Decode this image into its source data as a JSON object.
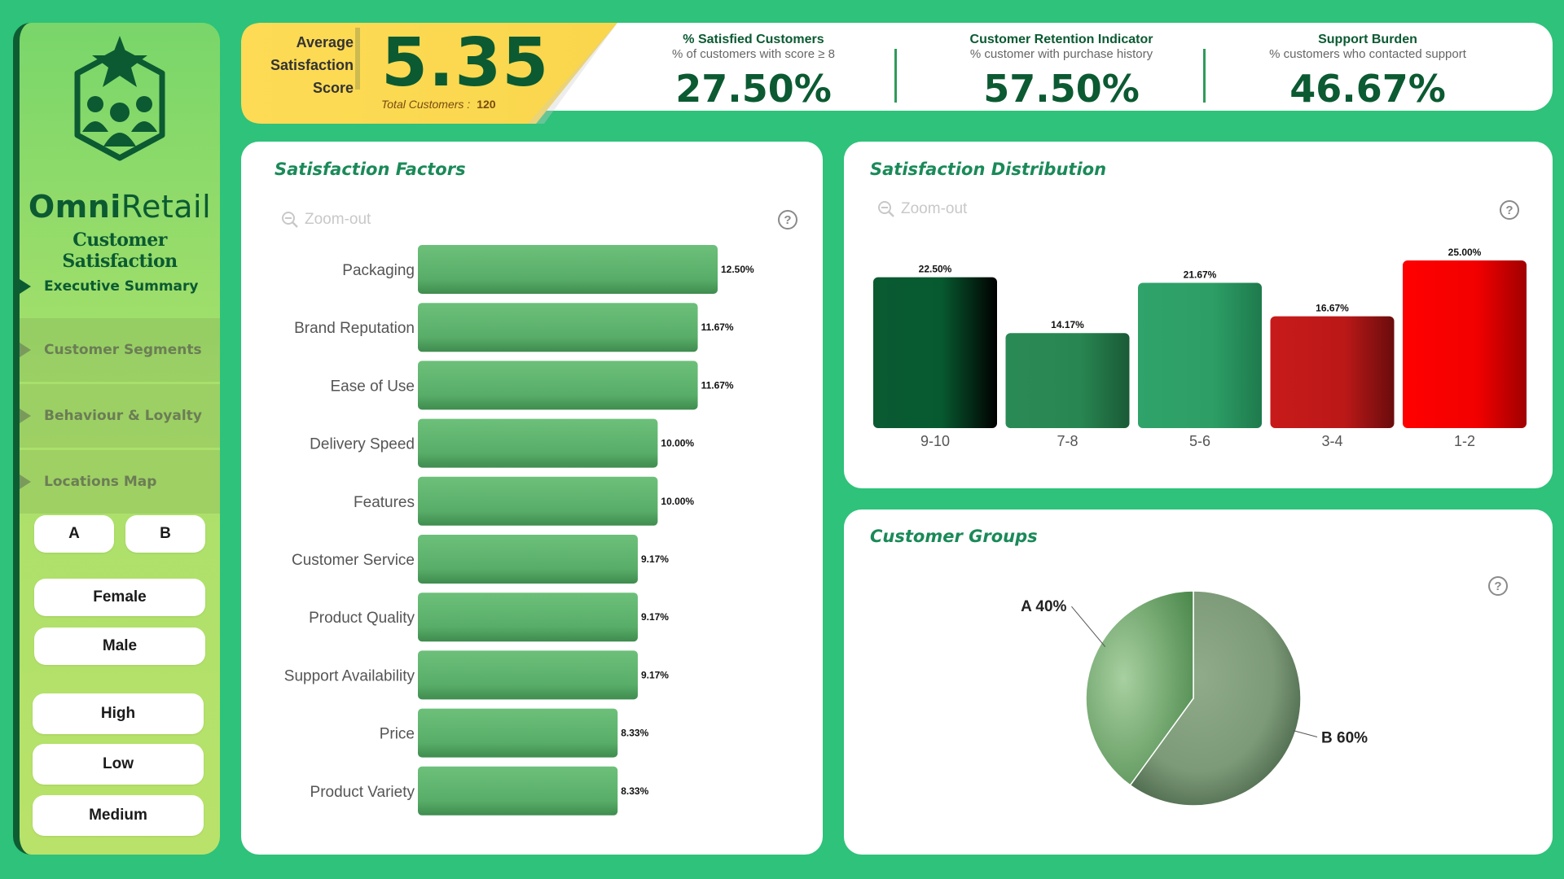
{
  "brand": {
    "name_bold": "Omni",
    "name_rest": "Retail",
    "subtitle": "Customer Satisfaction"
  },
  "nav": [
    {
      "label": "Executive Summary"
    },
    {
      "label": "Customer Segments"
    },
    {
      "label": "Behaviour & Loyalty"
    },
    {
      "label": "Locations Map"
    }
  ],
  "filters": {
    "group": [
      "A",
      "B"
    ],
    "gender": [
      "Female",
      "Male"
    ],
    "level": [
      "High",
      "Low",
      "Medium"
    ]
  },
  "kpis": {
    "avg_label_1": "Average",
    "avg_label_2": "Satisfaction",
    "avg_label_3": "Score",
    "avg_value": "5.35",
    "total_label": "Total Customers :",
    "total_value": "120",
    "satisfied": {
      "title": "% Satisfied Customers",
      "sub": "% of customers with score ≥ 8",
      "value": "27.50%"
    },
    "retention": {
      "title": "Customer Retention Indicator",
      "sub": "% customer with purchase history",
      "value": "57.50%"
    },
    "support": {
      "title": "Support Burden",
      "sub": "% customers who contacted support",
      "value": "46.67%"
    }
  },
  "panels": {
    "factors_title": "Satisfaction Factors",
    "distribution_title": "Satisfaction Distribution",
    "groups_title": "Customer Groups",
    "zoom_label": "Zoom-out",
    "help": "?"
  },
  "chart_data": [
    {
      "type": "bar",
      "title": "Satisfaction Factors",
      "orientation": "horizontal",
      "categories": [
        "Packaging",
        "Brand Reputation",
        "Ease of Use",
        "Delivery Speed",
        "Features",
        "Customer Service",
        "Product Quality",
        "Support Availability",
        "Price",
        "Product Variety"
      ],
      "values": [
        12.5,
        11.67,
        11.67,
        10.0,
        10.0,
        9.17,
        9.17,
        9.17,
        8.33,
        8.33
      ],
      "labels": [
        "12.50%",
        "11.67%",
        "11.67%",
        "10.00%",
        "10.00%",
        "9.17%",
        "9.17%",
        "9.17%",
        "8.33%",
        "8.33%"
      ],
      "color": "#5cb46c"
    },
    {
      "type": "bar",
      "title": "Satisfaction Distribution",
      "categories": [
        "9-10",
        "7-8",
        "5-6",
        "3-4",
        "1-2"
      ],
      "values": [
        22.5,
        14.17,
        21.67,
        16.67,
        25.0
      ],
      "labels": [
        "22.50%",
        "14.17%",
        "21.67%",
        "16.67%",
        "25.00%"
      ],
      "colors": [
        "#0a5a32",
        "#2a8a55",
        "#2fa36a",
        "#c01818",
        "#ff0000"
      ]
    },
    {
      "type": "pie",
      "title": "Customer Groups",
      "categories": [
        "A",
        "B"
      ],
      "values": [
        40,
        60
      ],
      "labels": [
        "A 40%",
        "B 60%"
      ],
      "colors": [
        "#8fc08f",
        "#5d8a5d"
      ]
    }
  ]
}
